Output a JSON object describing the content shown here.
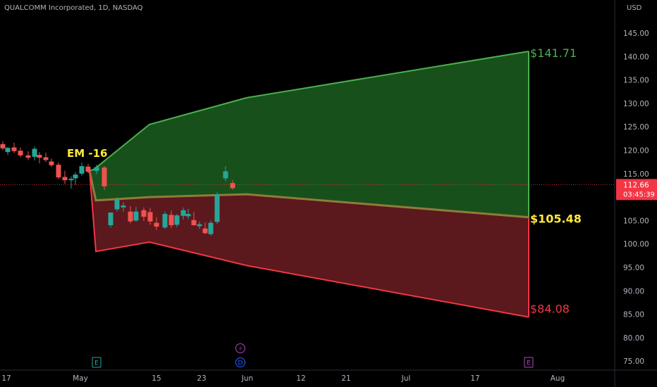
{
  "header": {
    "symbol_line": "QUALCOMM Incorporated, 1D, NASDAQ"
  },
  "price_axis": {
    "currency": "USD",
    "ticks": [
      "145.00",
      "140.00",
      "135.00",
      "130.00",
      "125.00",
      "120.00",
      "115.00",
      "110.00",
      "105.00",
      "100.00",
      "95.00",
      "90.00",
      "85.00",
      "80.00",
      "75.00"
    ]
  },
  "time_axis": {
    "ticks": [
      "17",
      "May",
      "15",
      "23",
      "Jun",
      "12",
      "21",
      "Jul",
      "17",
      "Aug"
    ]
  },
  "current_price": {
    "price": "112.66",
    "countdown": "03:45:39",
    "color": "#f23645"
  },
  "colors": {
    "up": "#26a69a",
    "down": "#ef5350",
    "upper_line": "#4caf50",
    "upper_fill": "#1b5e20",
    "lower_line": "#f23645",
    "lower_fill": "#6b1c22",
    "mid_line": "#8d7d3a",
    "yellow": "#ffeb3b"
  },
  "chart_data": {
    "type": "candlestick",
    "title": "QUALCOMM Incorporated, 1D, NASDAQ",
    "ylim": [
      74,
      149
    ],
    "y_ticks": [
      145,
      140,
      135,
      130,
      125,
      120,
      115,
      110,
      105,
      100,
      95,
      90,
      85,
      80,
      75
    ],
    "x_ticks": [
      "17",
      "May",
      "15",
      "23",
      "Jun",
      "12",
      "21",
      "Jul",
      "17",
      "Aug"
    ],
    "candles": [
      {
        "o": 121.3,
        "h": 121.9,
        "l": 120.0,
        "c": 120.4
      },
      {
        "o": 119.6,
        "h": 120.7,
        "l": 119.0,
        "c": 120.5
      },
      {
        "o": 120.6,
        "h": 121.6,
        "l": 119.4,
        "c": 119.8
      },
      {
        "o": 119.9,
        "h": 120.6,
        "l": 118.5,
        "c": 118.9
      },
      {
        "o": 118.9,
        "h": 119.8,
        "l": 117.9,
        "c": 118.4
      },
      {
        "o": 118.6,
        "h": 120.8,
        "l": 117.8,
        "c": 120.3
      },
      {
        "o": 119.0,
        "h": 119.6,
        "l": 117.2,
        "c": 118.4
      },
      {
        "o": 118.5,
        "h": 119.5,
        "l": 117.5,
        "c": 117.9
      },
      {
        "o": 117.6,
        "h": 118.2,
        "l": 116.4,
        "c": 116.8
      },
      {
        "o": 116.9,
        "h": 117.4,
        "l": 113.8,
        "c": 114.2
      },
      {
        "o": 114.3,
        "h": 115.6,
        "l": 112.8,
        "c": 113.6
      },
      {
        "o": 113.6,
        "h": 114.4,
        "l": 111.8,
        "c": 113.9
      },
      {
        "o": 114.0,
        "h": 115.3,
        "l": 112.6,
        "c": 114.8
      },
      {
        "o": 115.0,
        "h": 117.4,
        "l": 114.6,
        "c": 116.6
      },
      {
        "o": 116.5,
        "h": 117.1,
        "l": 115.1,
        "c": 115.4
      },
      {
        "o": 115.6,
        "h": 116.9,
        "l": 114.9,
        "c": 116.4
      },
      {
        "o": 116.3,
        "h": 116.6,
        "l": 111.5,
        "c": 112.3
      },
      {
        "o": 104.0,
        "h": 106.0,
        "l": 103.5,
        "c": 106.7
      },
      {
        "o": 107.4,
        "h": 109.9,
        "l": 106.9,
        "c": 109.4
      },
      {
        "o": 107.8,
        "h": 108.9,
        "l": 106.9,
        "c": 108.2
      },
      {
        "o": 106.9,
        "h": 108.1,
        "l": 104.4,
        "c": 104.8
      },
      {
        "o": 105.0,
        "h": 107.9,
        "l": 104.7,
        "c": 106.9
      },
      {
        "o": 107.2,
        "h": 107.8,
        "l": 104.9,
        "c": 105.8
      },
      {
        "o": 106.8,
        "h": 107.7,
        "l": 104.1,
        "c": 104.8
      },
      {
        "o": 104.5,
        "h": 105.7,
        "l": 103.0,
        "c": 103.7
      },
      {
        "o": 103.5,
        "h": 106.9,
        "l": 103.2,
        "c": 106.4
      },
      {
        "o": 106.2,
        "h": 107.1,
        "l": 103.4,
        "c": 104.0
      },
      {
        "o": 104.1,
        "h": 106.4,
        "l": 103.6,
        "c": 106.1
      },
      {
        "o": 106.0,
        "h": 107.8,
        "l": 105.2,
        "c": 107.2
      },
      {
        "o": 105.9,
        "h": 107.5,
        "l": 105.3,
        "c": 106.4
      },
      {
        "o": 105.1,
        "h": 106.8,
        "l": 103.9,
        "c": 104.0
      },
      {
        "o": 103.8,
        "h": 104.8,
        "l": 103.2,
        "c": 104.2
      },
      {
        "o": 103.3,
        "h": 104.6,
        "l": 102.1,
        "c": 102.3
      },
      {
        "o": 102.1,
        "h": 105.0,
        "l": 101.8,
        "c": 104.5
      },
      {
        "o": 104.7,
        "h": 111.0,
        "l": 104.3,
        "c": 110.6
      },
      {
        "o": 114.0,
        "h": 116.6,
        "l": 113.4,
        "c": 115.5
      },
      {
        "o": 113.0,
        "h": 113.6,
        "l": 111.6,
        "c": 111.9
      }
    ],
    "expected_move": {
      "label": "EM -16",
      "upper_band": [
        [
          127,
          115.6
        ],
        [
          134,
          116.0
        ],
        [
          212,
          125.5
        ],
        [
          350,
          131.2
        ],
        [
          750,
          141.1
        ]
      ],
      "mid_band": [
        [
          127,
          115.6
        ],
        [
          136,
          109.3
        ],
        [
          212,
          110.0
        ],
        [
          350,
          110.6
        ],
        [
          750,
          105.7
        ]
      ],
      "lower_band": [
        [
          127,
          115.6
        ],
        [
          136,
          98.4
        ],
        [
          212,
          100.4
        ],
        [
          350,
          95.4
        ],
        [
          750,
          84.4
        ]
      ],
      "labels": [
        "$141.71",
        "$105.48",
        "$84.08"
      ]
    },
    "current_price": 112.66,
    "events": [
      {
        "symbol": "E",
        "date": "May"
      },
      {
        "symbol": "⚡",
        "date": "Jun"
      },
      {
        "symbol": "D",
        "date": "Jun"
      },
      {
        "symbol": "E",
        "date": "Aug"
      }
    ]
  }
}
